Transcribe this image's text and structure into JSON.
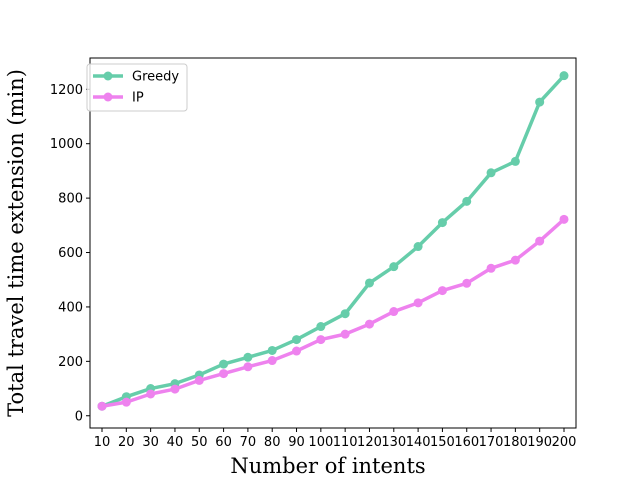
{
  "chart_data": {
    "type": "line",
    "xlabel": "Number of intents",
    "ylabel": "Total travel time extension (min)",
    "x": [
      10,
      20,
      30,
      40,
      50,
      60,
      70,
      80,
      90,
      100,
      110,
      120,
      130,
      140,
      150,
      160,
      170,
      180,
      190,
      200
    ],
    "ylim": [
      -45,
      1315
    ],
    "yticks": [
      0,
      200,
      400,
      600,
      800,
      1000,
      1200
    ],
    "grid": false,
    "legend_position": "upper-left",
    "series": [
      {
        "name": "Greedy",
        "color": "#66cdaa",
        "values": [
          35,
          70,
          100,
          118,
          150,
          190,
          215,
          240,
          280,
          328,
          375,
          488,
          548,
          622,
          710,
          788,
          893,
          935,
          1153,
          1250
        ]
      },
      {
        "name": "IP",
        "color": "#ee82ee",
        "values": [
          35,
          50,
          80,
          98,
          130,
          155,
          180,
          203,
          238,
          280,
          300,
          337,
          383,
          415,
          460,
          487,
          542,
          572,
          642,
          722
        ]
      }
    ]
  }
}
